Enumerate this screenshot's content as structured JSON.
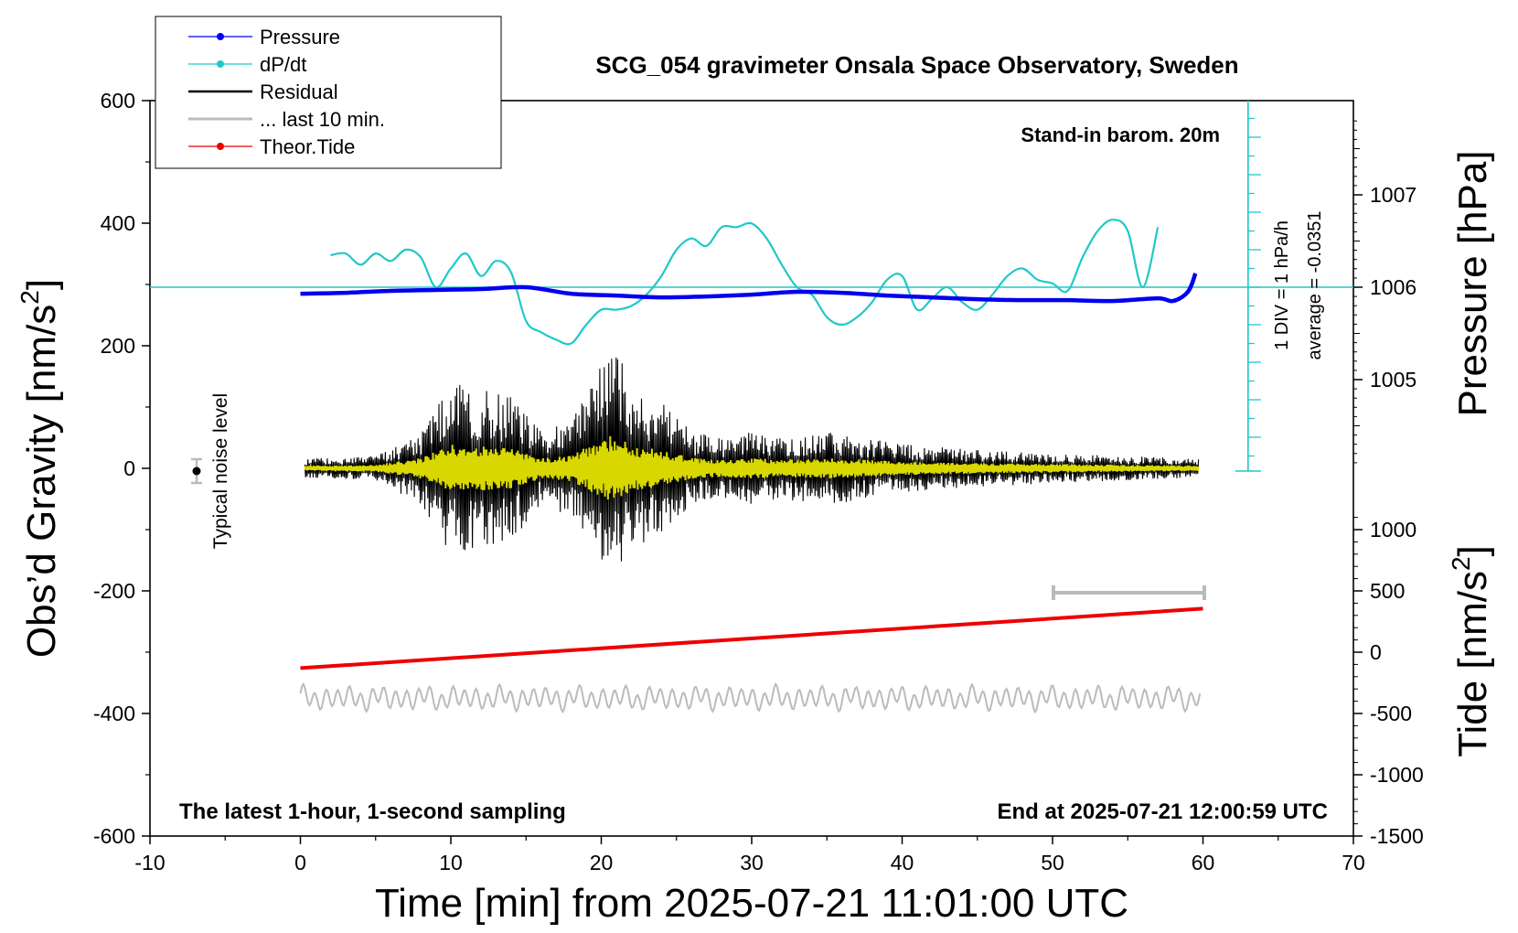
{
  "chart_data": {
    "type": "line",
    "title": "SCG_054 gravimeter Onsala Space Observatory, Sweden",
    "xlabel": "Time [min] from 2025-07-21 11:01:00 UTC",
    "ylabel": "Obs’d Gravity [nm/s",
    "ylabel_sup": "2",
    "ylabel_end": "]",
    "y2label": "Pressure [hPa]",
    "y3label": "Tide [nm/s",
    "y3label_sup": "2",
    "y3label_end": "]",
    "xlim": [
      -10,
      70
    ],
    "ylim": [
      -600,
      600
    ],
    "xticks": [
      "-10",
      "0",
      "10",
      "20",
      "30",
      "40",
      "50",
      "60",
      "70"
    ],
    "xtick_values": [
      -10,
      0,
      10,
      20,
      30,
      40,
      50,
      60,
      70
    ],
    "yticks": [
      "-600",
      "-400",
      "-200",
      "0",
      "200",
      "400",
      "600"
    ],
    "ytick_values": [
      -600,
      -400,
      -200,
      0,
      200,
      400,
      600
    ],
    "pressure_ticks": [
      "1005",
      "1006",
      "1007"
    ],
    "pressure_tick_values": [
      1005,
      1006,
      1007
    ],
    "tide_ticks": [
      "1000",
      "500",
      "0",
      "-500",
      "-1000",
      "-1500"
    ],
    "tide_tick_values": [
      1000,
      500,
      0,
      -500,
      -1000,
      -1500
    ],
    "annotations": {
      "stand_in": "Stand-in barom. 20m",
      "div": "1 DIV = 1 hPa/h",
      "average": "average = -0.0351",
      "noise": "Typical noise level",
      "latest": "The latest 1-hour, 1-second sampling",
      "end": "End at 2025-07-21 12:00:59 UTC"
    },
    "legend": {
      "position": "top-left",
      "entries": [
        "Pressure",
        "dP/dt",
        "Residual",
        "... last 10 min.",
        "Theor.Tide"
      ]
    },
    "colors": {
      "pressure": "#0000ee",
      "dpdt": "#20c8c8",
      "residual": "#000000",
      "residual_filtered": "#d8d800",
      "last10": "#bbbbbb",
      "tide": "#ee0000"
    },
    "series": [
      {
        "name": "Pressure",
        "unit": "hPa",
        "x": [
          0,
          3,
          6,
          9,
          12,
          15,
          18,
          21,
          24,
          27,
          30,
          33,
          36,
          39,
          42,
          45,
          48,
          51,
          54,
          57,
          58,
          59,
          59.5
        ],
        "values": [
          1005.93,
          1005.94,
          1005.96,
          1005.97,
          1005.98,
          1006.0,
          1005.93,
          1005.91,
          1005.89,
          1005.9,
          1005.92,
          1005.95,
          1005.94,
          1005.91,
          1005.89,
          1005.87,
          1005.86,
          1005.86,
          1005.85,
          1005.88,
          1005.85,
          1005.95,
          1006.15
        ]
      },
      {
        "name": "dP/dt",
        "unit": "hPa/h",
        "x": [
          2,
          3,
          4,
          5,
          6,
          7,
          8,
          9,
          10,
          11,
          12,
          13,
          14,
          15,
          16,
          17,
          18,
          19,
          20,
          21,
          22,
          23,
          24,
          25,
          26,
          27,
          28,
          29,
          30,
          31,
          32,
          33,
          34,
          35,
          36,
          37,
          38,
          39,
          40,
          41,
          42,
          43,
          44,
          45,
          46,
          47,
          48,
          49,
          50,
          51,
          52,
          53,
          54,
          55,
          56,
          57
        ],
        "values": [
          0.85,
          0.9,
          0.6,
          0.9,
          0.7,
          1.0,
          0.8,
          0.0,
          0.5,
          0.9,
          0.3,
          0.7,
          0.4,
          -0.9,
          -1.2,
          -1.4,
          -1.5,
          -1.0,
          -0.6,
          -0.6,
          -0.5,
          -0.2,
          0.3,
          1.0,
          1.3,
          1.1,
          1.6,
          1.6,
          1.7,
          1.3,
          0.6,
          0.0,
          -0.2,
          -0.8,
          -1.0,
          -0.8,
          -0.4,
          0.2,
          0.3,
          -0.6,
          -0.3,
          0.0,
          -0.4,
          -0.6,
          -0.2,
          0.3,
          0.5,
          0.2,
          0.1,
          -0.1,
          0.8,
          1.5,
          1.8,
          1.5,
          0.0,
          1.6
        ]
      },
      {
        "name": "Residual",
        "unit": "nm/s2",
        "x": [
          0,
          5,
          8,
          10,
          12,
          14,
          16,
          18,
          20,
          21,
          22,
          24,
          26,
          28,
          30,
          32,
          35,
          40,
          45,
          50,
          55,
          60
        ],
        "values": [
          15,
          20,
          60,
          140,
          130,
          120,
          60,
          80,
          170,
          200,
          130,
          110,
          60,
          50,
          60,
          50,
          60,
          40,
          30,
          25,
          20,
          15
        ]
      },
      {
        "name": "Theor.Tide",
        "unit": "nm/s2",
        "x": [
          0,
          60
        ],
        "values": [
          -130,
          355
        ]
      }
    ]
  }
}
